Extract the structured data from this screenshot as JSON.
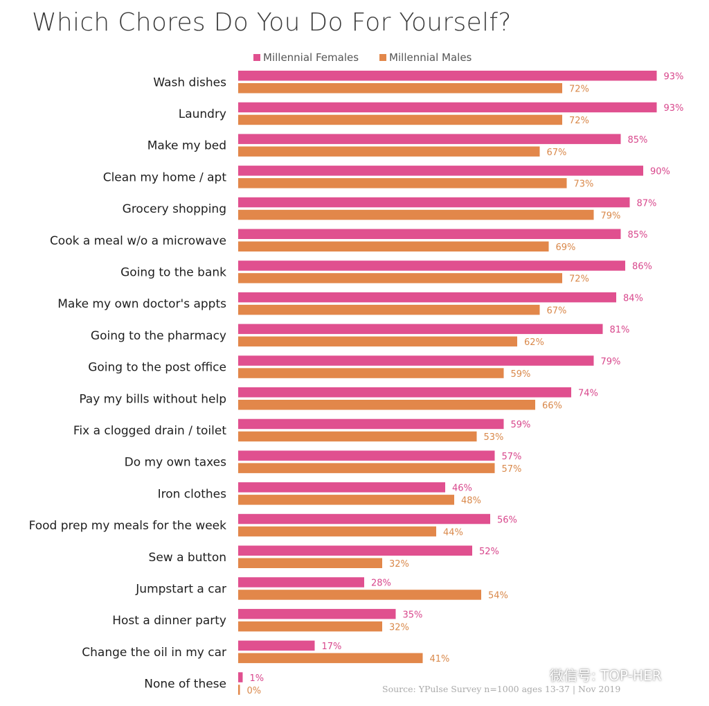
{
  "title": "Which Chores Do You Do For Yourself?",
  "source": "Source: YPulse Survey n=1000 ages 13-37 | Nov 2019",
  "watermark": "微信号: TOP-HER",
  "colors": {
    "females": "#e0508f",
    "males": "#e2874a",
    "females_label": "#d8478c",
    "males_label": "#d9884a"
  },
  "chart_data": {
    "type": "bar",
    "orientation": "horizontal",
    "title": "Which Chores Do You Do For Yourself?",
    "categories": [
      "Wash dishes",
      "Laundry",
      "Make my bed",
      "Clean my home / apt",
      "Grocery shopping",
      "Cook a meal w/o a microwave",
      "Going to the bank",
      "Make my own doctor's appts",
      "Going to the pharmacy",
      "Going to the post office",
      "Pay my bills without help",
      "Fix a clogged drain / toilet",
      "Do my own taxes",
      "Iron clothes",
      "Food prep my meals for the week",
      "Sew a button",
      "Jumpstart a car",
      "Host a dinner party",
      "Change the oil in my car",
      "None of these"
    ],
    "series": [
      {
        "name": "Millennial Females",
        "values": [
          93,
          93,
          85,
          90,
          87,
          85,
          86,
          84,
          81,
          79,
          74,
          59,
          57,
          46,
          56,
          52,
          28,
          35,
          17,
          1
        ],
        "labels": [
          "93%",
          "93%",
          "85%",
          "90%",
          "87%",
          "85%",
          "86%",
          "84%",
          "81%",
          "79%",
          "74%",
          "59%",
          "57%",
          "46%",
          "56%",
          "52%",
          "28%",
          "35%",
          "17%",
          "1%"
        ]
      },
      {
        "name": "Millennial Males",
        "values": [
          72,
          72,
          67,
          73,
          79,
          69,
          72,
          67,
          62,
          59,
          66,
          53,
          57,
          48,
          44,
          32,
          54,
          32,
          41,
          0
        ],
        "labels": [
          "72%",
          "72%",
          "67%",
          "73%",
          "79%",
          "69%",
          "72%",
          "67%",
          "62%",
          "59%",
          "66%",
          "53%",
          "57%",
          "48%",
          "44%",
          "32%",
          "54%",
          "32%",
          "41%",
          "0%"
        ]
      }
    ],
    "xlim": [
      0,
      100
    ],
    "grid": false,
    "legend": "top"
  }
}
